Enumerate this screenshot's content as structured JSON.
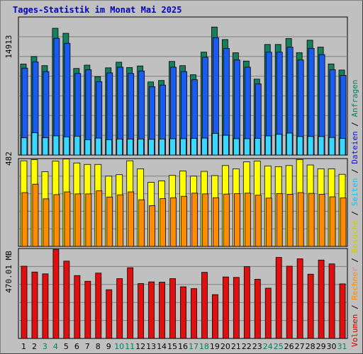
{
  "chart_data": {
    "type": "bar",
    "title": "Tages-Statistik im Monat Mai 2025",
    "categories": [
      "1",
      "2",
      "3",
      "4",
      "5",
      "6",
      "7",
      "8",
      "9",
      "10",
      "11",
      "12",
      "13",
      "14",
      "15",
      "16",
      "17",
      "18",
      "19",
      "20",
      "21",
      "22",
      "23",
      "24",
      "25",
      "26",
      "27",
      "28",
      "29",
      "30",
      "31"
    ],
    "weekend_days": [
      "3",
      "4",
      "10",
      "11",
      "17",
      "18",
      "24",
      "25",
      "31"
    ],
    "colors": {
      "anfragen": "#157f5f",
      "dateien": "#1a5cf2",
      "seiten": "#3ad8ff",
      "besuche": "#ffff00",
      "rechner": "#ff8c00",
      "volumen": "#e01010",
      "weekend": "#008060",
      "weekday": "#000000"
    },
    "panels": [
      {
        "id": "requests",
        "ytick": "14913",
        "ymax": 22000,
        "series": [
          {
            "name": "Anfragen",
            "values": [
              14500,
              15700,
              14250,
              20200,
              19400,
              13800,
              14330,
              12500,
              13900,
              14800,
              13950,
              14200,
              11650,
              11880,
              14920,
              14250,
              12800,
              16400,
              20400,
              18400,
              16300,
              14980,
              12100,
              17620,
              17620,
              18560,
              16320,
              18300,
              17200,
              14520,
              13550
            ]
          },
          {
            "name": "Dateien",
            "values": [
              13850,
              14850,
              13300,
              18600,
              17800,
              13000,
              13600,
              11700,
              13100,
              14000,
              13000,
              13400,
              10900,
              11150,
              14000,
              13300,
              12000,
              15600,
              18700,
              17000,
              15150,
              14000,
              11350,
              16400,
              16400,
              17200,
              15150,
              17000,
              16000,
              13600,
              12700
            ]
          },
          {
            "name": "Seiten",
            "values": [
              2750,
              3550,
              2750,
              3050,
              2900,
              3000,
              2450,
              2700,
              2450,
              2550,
              2550,
              2550,
              2500,
              2550,
              2600,
              2600,
              2650,
              2700,
              3450,
              3150,
              2600,
              2600,
              2650,
              3050,
              3300,
              3500,
              2950,
              2950,
              2950,
              2800,
              2650
            ]
          }
        ]
      },
      {
        "id": "visits",
        "ytick": "482",
        "ymax": 480,
        "series": [
          {
            "name": "Besuche",
            "values": [
              468,
              474,
              408,
              466,
              478,
              456,
              448,
              448,
              384,
              392,
              468,
              424,
              350,
              358,
              388,
              412,
              384,
              410,
              387,
              442,
              424,
              462,
              466,
              440,
              436,
              442,
              475,
              445,
              424,
              424,
              394
            ]
          },
          {
            "name": "Rechner",
            "values": [
              294,
              340,
              260,
              283,
              298,
              287,
              287,
              304,
              270,
              282,
              298,
              255,
              223,
              261,
              266,
              274,
              291,
              287,
              266,
              286,
              288,
              291,
              280,
              264,
              289,
              285,
              294,
              290,
              285,
              271,
              265
            ]
          }
        ]
      },
      {
        "id": "volume",
        "ytick": "470.01 MB",
        "ymax": 585,
        "series": [
          {
            "name": "Volumen",
            "values": [
              470,
              432,
              420,
              579,
              503,
              409,
              372,
              425,
              317,
              389,
              460,
              357,
              368,
              366,
              389,
              336,
              324,
              430,
              285,
              400,
              397,
              467,
              385,
              327,
              527,
              470,
              518,
              418,
              510,
              485,
              355
            ]
          }
        ]
      }
    ],
    "legend": [
      {
        "label": "Volumen",
        "color": "#cc0000"
      },
      {
        "label": "Rechner",
        "color": "#ff8c00"
      },
      {
        "label": "Besuche",
        "color": "#cccc00"
      },
      {
        "label": "Seiten",
        "color": "#00c8ff"
      },
      {
        "label": "Dateien",
        "color": "#1010cc"
      },
      {
        "label": "Anfragen",
        "color": "#008060"
      }
    ]
  }
}
